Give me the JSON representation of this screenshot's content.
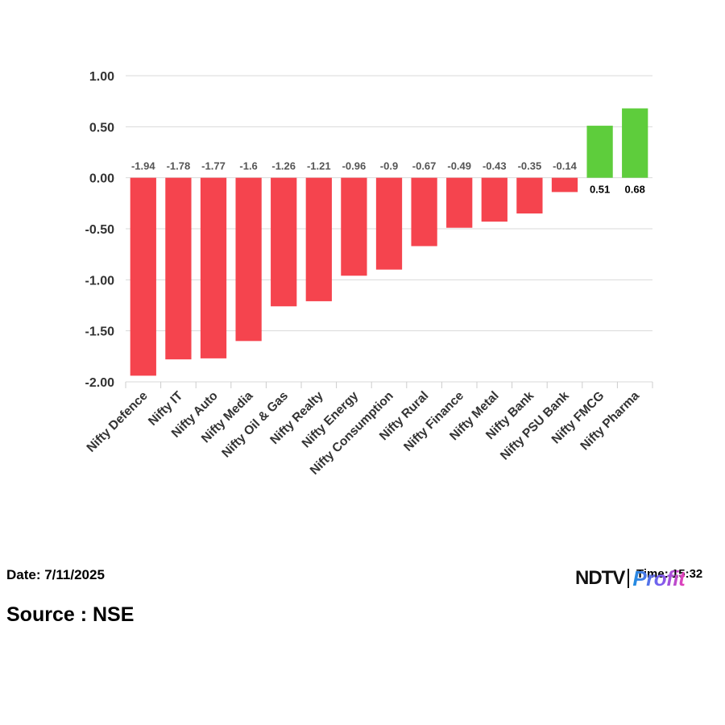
{
  "chart_data": {
    "type": "bar",
    "title": "",
    "xlabel": "",
    "ylabel": "",
    "categories": [
      "Nifty Defence",
      "Nifty IT",
      "Nifty Auto",
      "Nifty Media",
      "Nifty Oil & Gas",
      "Nifty Realty",
      "Nifty Energy",
      "Nifty Consumption",
      "Nifty Rural",
      "Nifty Finance",
      "Nifty Metal",
      "Nifty Bank",
      "Nifty PSU Bank",
      "Nifty FMCG",
      "Nifty Pharma"
    ],
    "values": [
      -1.94,
      -1.78,
      -1.77,
      -1.6,
      -1.26,
      -1.21,
      -0.96,
      -0.9,
      -0.67,
      -0.49,
      -0.43,
      -0.35,
      -0.14,
      0.51,
      0.68
    ],
    "data_labels": [
      "-1.94",
      "-1.78",
      "-1.77",
      "-1.6",
      "-1.26",
      "-1.21",
      "-0.96",
      "-0.9",
      "-0.67",
      "-0.49",
      "-0.43",
      "-0.35",
      "-0.14",
      "0.51",
      "0.68"
    ],
    "ylim": [
      -2.0,
      1.0
    ],
    "yticks": [
      "1.00",
      "0.50",
      "0.00",
      "-0.50",
      "-1.00",
      "-1.50",
      "-2.00"
    ],
    "ytick_values": [
      1.0,
      0.5,
      0.0,
      -0.5,
      -1.0,
      -1.5,
      -2.0
    ],
    "grid": true,
    "colors": {
      "negative": "#f5444e",
      "positive": "#5ecd3c",
      "negative_label": "#555555",
      "positive_label": "#000000"
    }
  },
  "footer": {
    "date": "Date: 7/11/2025",
    "source": "Source : NSE",
    "time": "Time: 15:32",
    "logo_left": "NDTV",
    "logo_right": "Profit"
  }
}
